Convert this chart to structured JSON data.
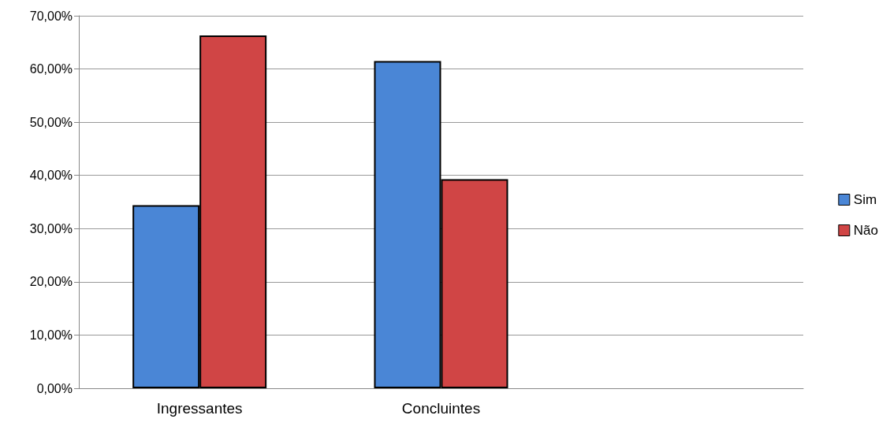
{
  "chart_data": {
    "type": "bar",
    "categories": [
      "Ingressantes",
      "Concluintes",
      null
    ],
    "series": [
      {
        "name": "Sim",
        "color": "#4a86d6",
        "values": [
          34.4,
          61.5,
          null
        ]
      },
      {
        "name": "Não",
        "color": "#d04545",
        "values": [
          66.3,
          39.3,
          null
        ]
      }
    ],
    "ylim": [
      0,
      70
    ],
    "yticks": [
      {
        "value": 0,
        "label": "0,00%"
      },
      {
        "value": 10,
        "label": "10,00%"
      },
      {
        "value": 20,
        "label": "20,00%"
      },
      {
        "value": 30,
        "label": "30,00%"
      },
      {
        "value": 40,
        "label": "40,00%"
      },
      {
        "value": 50,
        "label": "50,00%"
      },
      {
        "value": 60,
        "label": "60,00%"
      },
      {
        "value": 70,
        "label": "70,00%"
      }
    ],
    "grid": "y",
    "legend": "right"
  }
}
